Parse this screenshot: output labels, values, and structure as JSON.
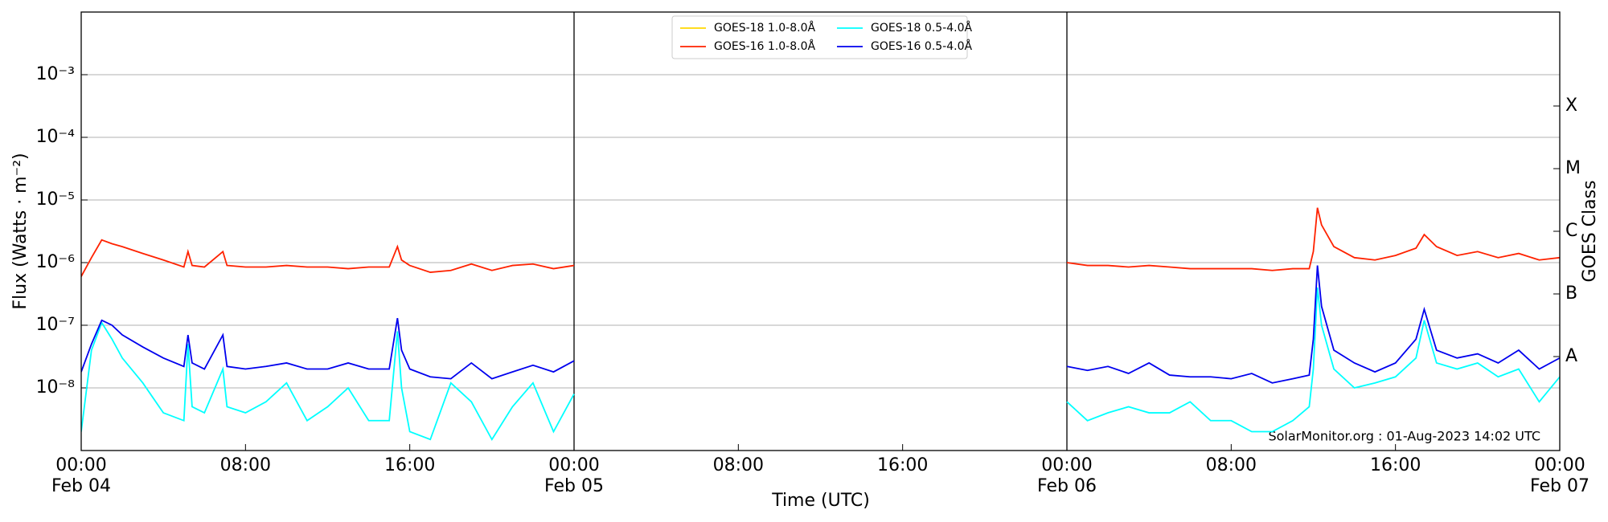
{
  "chart_data": {
    "type": "line",
    "xlabel": "Time (UTC)",
    "ylabel": "Flux (Watts · m⁻²)",
    "y2label": "GOES Class",
    "annotation": "SolarMonitor.org : 01-Aug-2023 14:02 UTC",
    "ylog": true,
    "grid": true,
    "legend": "upper center",
    "xlim": [
      0,
      72
    ],
    "xticks": [
      {
        "value": 0,
        "label": "00:00\nFeb 04"
      },
      {
        "value": 8,
        "label": "08:00"
      },
      {
        "value": 16,
        "label": "16:00"
      },
      {
        "value": 24,
        "label": "00:00\nFeb 05"
      },
      {
        "value": 32,
        "label": "08:00"
      },
      {
        "value": 40,
        "label": "16:00"
      },
      {
        "value": 48,
        "label": "00:00\nFeb 06"
      },
      {
        "value": 56,
        "label": "08:00"
      },
      {
        "value": 64,
        "label": "16:00"
      },
      {
        "value": 72,
        "label": "00:00\nFeb 07"
      }
    ],
    "ylim": [
      1e-09,
      0.01
    ],
    "yticks": [
      {
        "value": 1e-08,
        "label": "10⁻⁸"
      },
      {
        "value": 1e-07,
        "label": "10⁻⁷"
      },
      {
        "value": 1e-06,
        "label": "10⁻⁶"
      },
      {
        "value": 1e-05,
        "label": "10⁻⁵"
      },
      {
        "value": 0.0001,
        "label": "10⁻⁴"
      },
      {
        "value": 0.001,
        "label": "10⁻³"
      }
    ],
    "y2lim": [
      1e-09,
      0.01
    ],
    "y2ticks": [
      {
        "value": 3.162e-08,
        "label": "A"
      },
      {
        "value": 3.162e-07,
        "label": "B"
      },
      {
        "value": 3.162e-06,
        "label": "C"
      },
      {
        "value": 3.162e-05,
        "label": "M"
      },
      {
        "value": 0.0003162,
        "label": "X"
      }
    ],
    "x": [
      0,
      0.5,
      1,
      1.5,
      2,
      3,
      4,
      5,
      5.2,
      5.4,
      6,
      6.9,
      7.1,
      8,
      9,
      10,
      11,
      12,
      13,
      14,
      15,
      15.4,
      15.6,
      16,
      17,
      18,
      19,
      20,
      21,
      22,
      23,
      24,
      36,
      48,
      49,
      50,
      51,
      52,
      53,
      54,
      55,
      56,
      57,
      58,
      59,
      59.8,
      60,
      60.2,
      60.4,
      61,
      62,
      63,
      64,
      65,
      65.4,
      66,
      67,
      68,
      69,
      70,
      71,
      72
    ],
    "series": [
      {
        "name": "GOES-18 1.0-8.0Å",
        "color": "#ffd700",
        "values": [
          null,
          null,
          null,
          null,
          null,
          null,
          null,
          null,
          null,
          null,
          null,
          null,
          null,
          null,
          null,
          null,
          null,
          null,
          null,
          null,
          null,
          null,
          null,
          null,
          null,
          null,
          null,
          null,
          null,
          null,
          null,
          null,
          null,
          null,
          null,
          null,
          null,
          null,
          null,
          null,
          null,
          null,
          null,
          null,
          null,
          null,
          null,
          null,
          null,
          null,
          null,
          null,
          null,
          null,
          null,
          null,
          null,
          null,
          null,
          null,
          null,
          null
        ]
      },
      {
        "name": "GOES-16 1.0-8.0Å",
        "color": "#ff2200",
        "values": [
          6e-07,
          1.2e-06,
          2.3e-06,
          2e-06,
          1.8e-06,
          1.4e-06,
          1.1e-06,
          8.5e-07,
          1.5e-06,
          9e-07,
          8.5e-07,
          1.5e-06,
          9e-07,
          8.5e-07,
          8.5e-07,
          9e-07,
          8.5e-07,
          8.5e-07,
          8e-07,
          8.5e-07,
          8.5e-07,
          1.8e-06,
          1.1e-06,
          9e-07,
          7e-07,
          7.5e-07,
          9.5e-07,
          7.5e-07,
          9e-07,
          9.5e-07,
          8e-07,
          9e-07,
          null,
          1e-06,
          9e-07,
          9e-07,
          8.5e-07,
          9e-07,
          8.5e-07,
          8e-07,
          8e-07,
          8e-07,
          8e-07,
          7.5e-07,
          8e-07,
          8e-07,
          1.5e-06,
          7.5e-06,
          4e-06,
          1.8e-06,
          1.2e-06,
          1.1e-06,
          1.3e-06,
          1.7e-06,
          2.8e-06,
          1.8e-06,
          1.3e-06,
          1.5e-06,
          1.2e-06,
          1.4e-06,
          1.1e-06,
          1.2e-06
        ]
      },
      {
        "name": "GOES-18 0.5-4.0Å",
        "color": "#00ffff",
        "values": [
          2e-09,
          4e-08,
          1.1e-07,
          6e-08,
          3e-08,
          1.2e-08,
          4e-09,
          3e-09,
          5e-08,
          5e-09,
          4e-09,
          2e-08,
          5e-09,
          4e-09,
          6e-09,
          1.2e-08,
          3e-09,
          5e-09,
          1e-08,
          3e-09,
          3e-09,
          8e-08,
          1e-08,
          2e-09,
          1.5e-09,
          1.2e-08,
          6e-09,
          1.5e-09,
          5e-09,
          1.2e-08,
          2e-09,
          8e-09,
          null,
          6e-09,
          3e-09,
          4e-09,
          5e-09,
          4e-09,
          4e-09,
          6e-09,
          3e-09,
          3e-09,
          2e-09,
          2e-09,
          3e-09,
          5e-09,
          2e-08,
          4e-07,
          1e-07,
          2e-08,
          1e-08,
          1.2e-08,
          1.5e-08,
          3e-08,
          1.2e-07,
          2.5e-08,
          2e-08,
          2.5e-08,
          1.5e-08,
          2e-08,
          6e-09,
          1.5e-08
        ]
      },
      {
        "name": "GOES-16 0.5-4.0Å",
        "color": "#0000ee",
        "values": [
          1.8e-08,
          5e-08,
          1.2e-07,
          1e-07,
          7e-08,
          4.5e-08,
          3e-08,
          2.2e-08,
          7e-08,
          2.5e-08,
          2e-08,
          7e-08,
          2.2e-08,
          2e-08,
          2.2e-08,
          2.5e-08,
          2e-08,
          2e-08,
          2.5e-08,
          2e-08,
          2e-08,
          1.3e-07,
          4e-08,
          2e-08,
          1.5e-08,
          1.4e-08,
          2.5e-08,
          1.4e-08,
          1.8e-08,
          2.3e-08,
          1.8e-08,
          2.7e-08,
          null,
          2.2e-08,
          1.9e-08,
          2.2e-08,
          1.7e-08,
          2.5e-08,
          1.6e-08,
          1.5e-08,
          1.5e-08,
          1.4e-08,
          1.7e-08,
          1.2e-08,
          1.4e-08,
          1.6e-08,
          6e-08,
          9e-07,
          2e-07,
          4e-08,
          2.5e-08,
          1.8e-08,
          2.5e-08,
          6e-08,
          1.8e-07,
          4e-08,
          3e-08,
          3.5e-08,
          2.5e-08,
          4e-08,
          2e-08,
          3e-08
        ]
      }
    ]
  }
}
